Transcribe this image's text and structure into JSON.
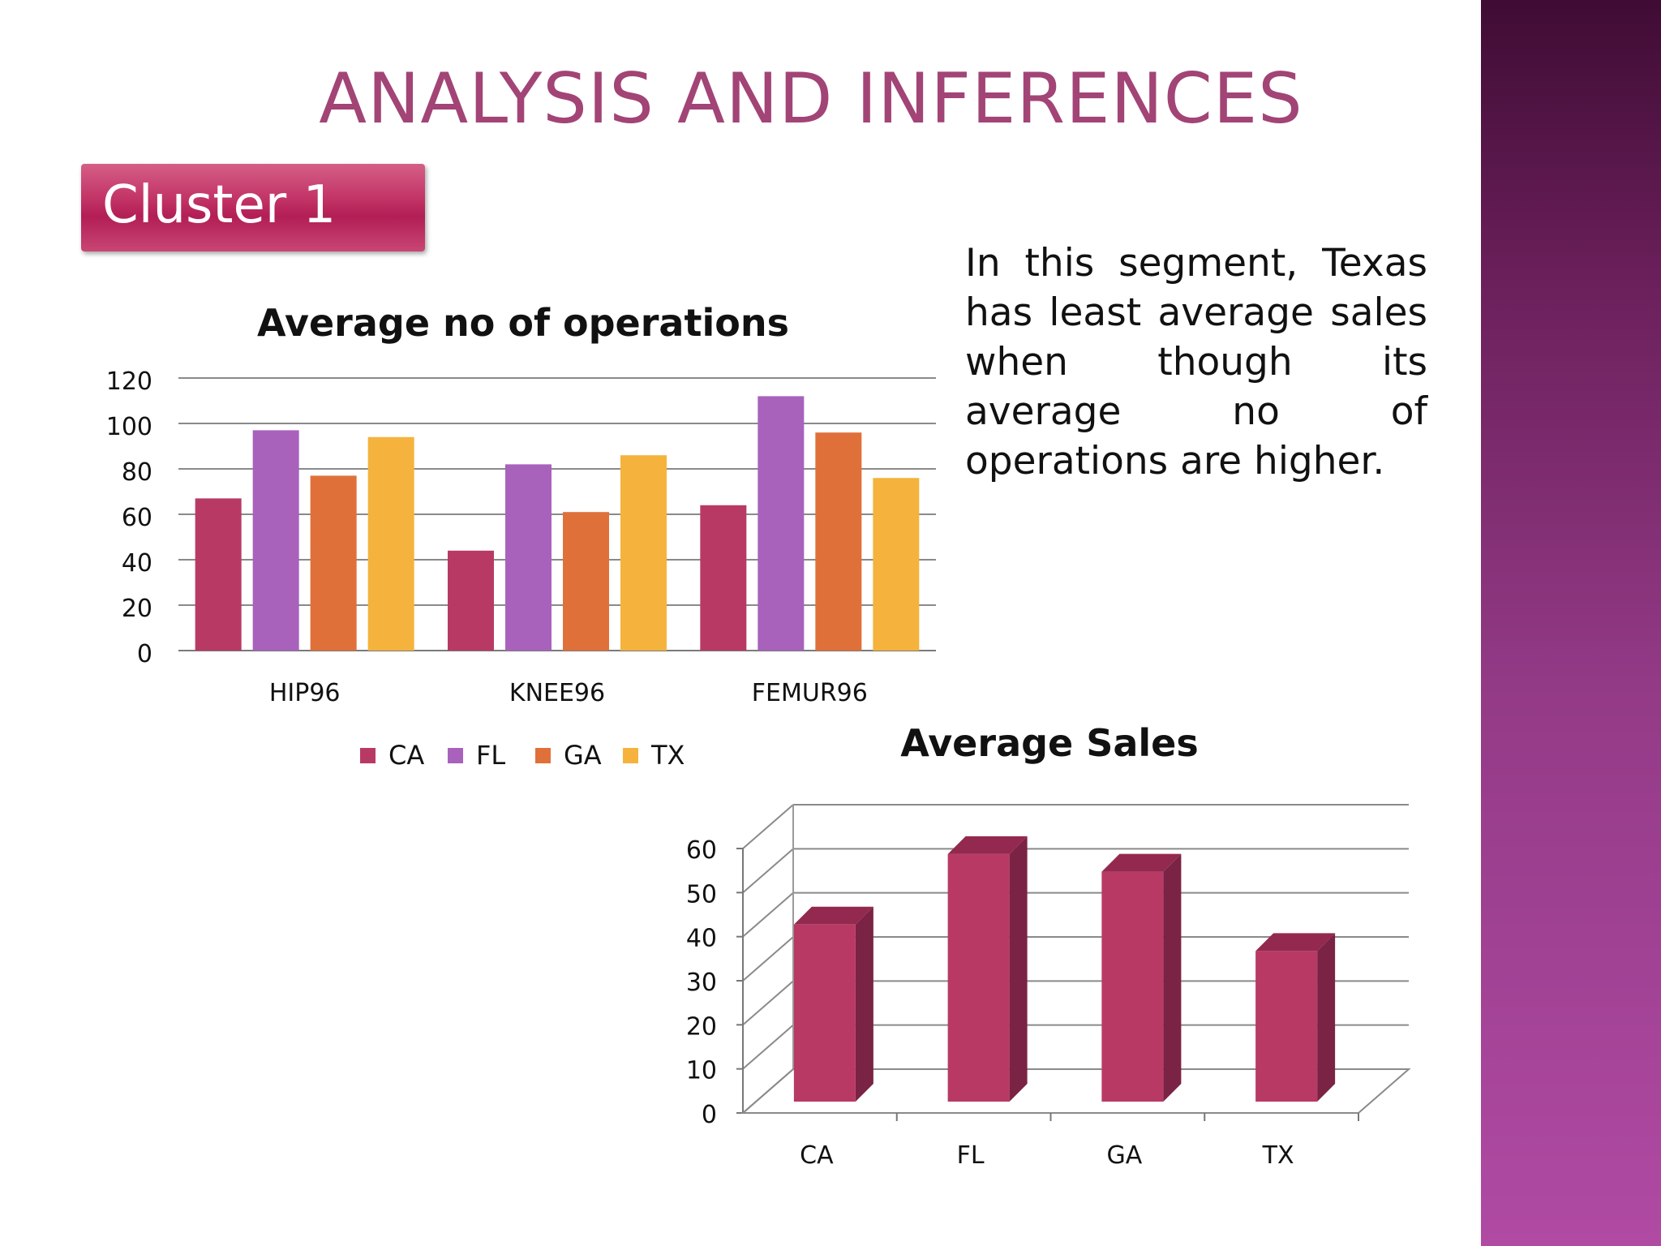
{
  "slide": {
    "title": "ANALYSIS AND INFERENCES",
    "cluster_label": "Cluster 1",
    "note": "In this segment, Texas has least average sales when though its average no of operations are higher."
  },
  "colors": {
    "title": "#a24476",
    "badge": "#b21e55",
    "side_band": "#933a86",
    "CA": "#b83a64",
    "FL": "#a862bc",
    "GA": "#e0703a",
    "TX": "#f5b33d",
    "sales_bar": "#b83a64"
  },
  "chart_data": [
    {
      "type": "bar",
      "title": "Average no of operations",
      "categories": [
        "HIP96",
        "KNEE96",
        "FEMUR96"
      ],
      "series": [
        {
          "name": "CA",
          "values": [
            67,
            44,
            64
          ]
        },
        {
          "name": "FL",
          "values": [
            97,
            82,
            112
          ]
        },
        {
          "name": "GA",
          "values": [
            77,
            61,
            96
          ]
        },
        {
          "name": "TX",
          "values": [
            94,
            86,
            76
          ]
        }
      ],
      "ylim": [
        0,
        120
      ],
      "yticks": [
        "0",
        "20",
        "40",
        "60",
        "80",
        "100",
        "120"
      ],
      "grid": true,
      "legend": "bottom"
    },
    {
      "type": "bar",
      "title": "Average Sales",
      "categories": [
        "CA",
        "FL",
        "GA",
        "TX"
      ],
      "values": [
        42,
        58,
        54,
        36
      ],
      "ylim": [
        0,
        60
      ],
      "yticks": [
        "0",
        "10",
        "20",
        "30",
        "40",
        "50",
        "60"
      ],
      "grid": true,
      "legend": "none",
      "style": "3d"
    }
  ]
}
